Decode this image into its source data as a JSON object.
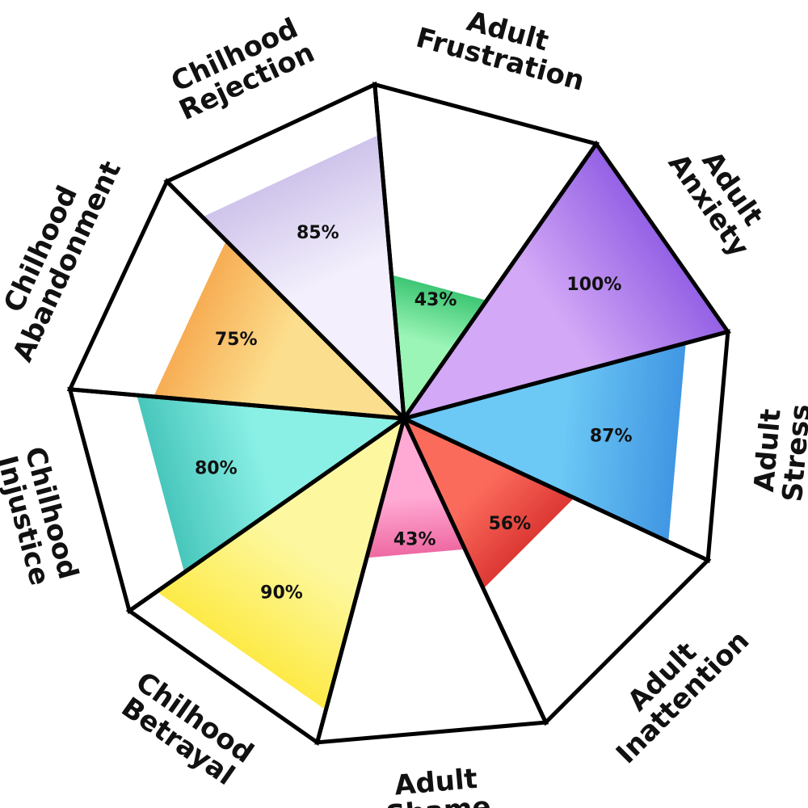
{
  "chart_data": {
    "type": "polar-area",
    "max": 100,
    "unit": "%",
    "segments": [
      {
        "line1": "Chilhood",
        "line2": "Abandonment",
        "value": 75,
        "display": "75%",
        "color": "#f6a54a",
        "color_light": "#fcdf8e"
      },
      {
        "line1": "Chilhood",
        "line2": "Rejection",
        "value": 85,
        "display": "85%",
        "color": "#c9bde8",
        "color_light": "#f3effc"
      },
      {
        "line1": "Adult",
        "line2": "Frustration",
        "value": 43,
        "display": "43%",
        "color": "#2fbf6a",
        "color_light": "#9bf5b6"
      },
      {
        "line1": "Adult",
        "line2": "Anxiety",
        "value": 100,
        "display": "100%",
        "color": "#8a56e2",
        "color_light": "#d3a8f6"
      },
      {
        "line1": "Adult",
        "line2": "Stress",
        "value": 87,
        "display": "87%",
        "color": "#3a8fe0",
        "color_light": "#6cc8f5"
      },
      {
        "line1": "Adult",
        "line2": "Inattention",
        "value": 56,
        "display": "56%",
        "color": "#d8302e",
        "color_light": "#fb6b5c"
      },
      {
        "line1": "Adult",
        "line2": "Shame",
        "value": 43,
        "display": "43%",
        "color": "#ec5f9b",
        "color_light": "#ffaad4"
      },
      {
        "line1": "Chilhood",
        "line2": "Betrayal",
        "value": 90,
        "display": "90%",
        "color": "#fde83a",
        "color_light": "#fdf8a0"
      },
      {
        "line1": "Chilhood",
        "line2": "Injustice",
        "value": 80,
        "display": "80%",
        "color": "#3ec0b5",
        "color_light": "#8af0e6"
      }
    ]
  }
}
